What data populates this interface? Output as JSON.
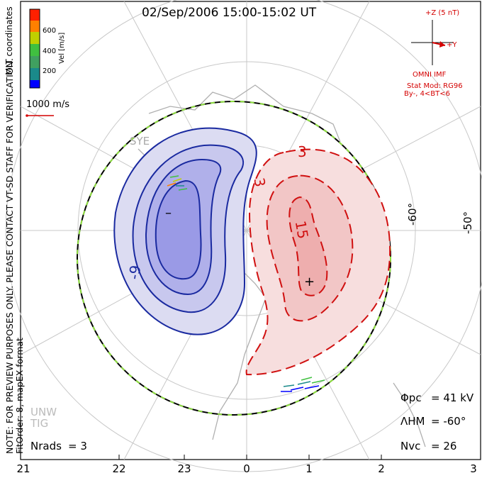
{
  "title": "02/Sep/2006 15:00-15:02 UT",
  "side_note": "NOTE: FOR PREVIEW PURPOSES ONLY. PLEASE CONTACT VT-SD STAFF FOR VERIFICATION.",
  "fit_note": "FitOrder: 8, mapEX format",
  "coord_label": "MLT coordinates",
  "colorbar": {
    "label": "Vel [m/s]",
    "ticks": [
      "600",
      "400",
      "200"
    ],
    "colors": [
      "#0000ff",
      "#1a8a8a",
      "#40c040",
      "#c0d000",
      "#ff8000",
      "#ff2000",
      "#dd0000"
    ]
  },
  "reference_vector": {
    "label": "1000 m/s",
    "color": "#d40000"
  },
  "imf": {
    "z_label": "+Z (5 nT)",
    "y_label": "+Y",
    "source": "OMNI IMF",
    "model": "Stat Mod: RG96",
    "condition": "By-, 4<BT<6",
    "color": "#d40000"
  },
  "stations": [
    "SYE",
    "UNW",
    "TIG"
  ],
  "contours": {
    "negative_labels": [
      "-9"
    ],
    "positive_labels": [
      "3",
      "3",
      "15"
    ],
    "min_marker": "–",
    "max_marker": "+",
    "negative_color": "#1a2aa0",
    "positive_color": "#d01010"
  },
  "latitude_labels": [
    "-60°",
    "-50°"
  ],
  "stats": {
    "phi_pc_label": "Φpc",
    "phi_pc_value": "= 41 kV",
    "lambda_hm_label": "ΛHM",
    "lambda_hm_value": "= -60°",
    "n_vc_label": "Nvc",
    "n_vc_value": "= 26",
    "n_rads_label": "Nrads",
    "n_rads_value": "= 3"
  },
  "mlt_ticks": [
    "21",
    "22",
    "23",
    "0",
    "1",
    "2",
    "3"
  ]
}
